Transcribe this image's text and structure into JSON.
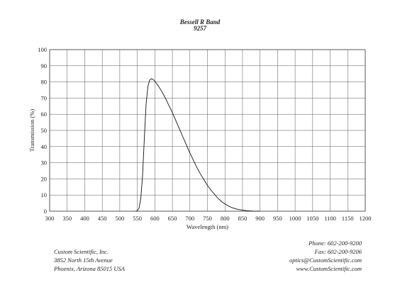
{
  "chart_data": {
    "type": "line",
    "title": "Bessell R Band",
    "subtitle": "9257",
    "xlabel": "Wavelength (nm)",
    "ylabel": "Transmission (%)",
    "xlim": [
      300,
      1200
    ],
    "ylim": [
      0,
      100
    ],
    "xticks": [
      300,
      350,
      400,
      450,
      500,
      550,
      600,
      650,
      700,
      750,
      800,
      850,
      900,
      950,
      1000,
      1050,
      1100,
      1150,
      1200
    ],
    "yticks": [
      0,
      10,
      20,
      30,
      40,
      50,
      60,
      70,
      80,
      90,
      100
    ],
    "grid": true,
    "series": [
      {
        "x": [
          545,
          550,
          555,
          560,
          565,
          570,
          575,
          580,
          585,
          590,
          595,
          600,
          610,
          620,
          630,
          640,
          650,
          660,
          670,
          680,
          690,
          700,
          710,
          720,
          730,
          740,
          750,
          760,
          770,
          780,
          790,
          800,
          810,
          820,
          830,
          840,
          850,
          860,
          870,
          880,
          890,
          900
        ],
        "y": [
          0,
          0.3,
          2,
          8,
          22,
          45,
          66,
          77,
          81,
          82,
          81.5,
          80.5,
          77.5,
          74,
          70,
          65.5,
          61,
          56,
          51,
          46,
          41,
          36,
          31.5,
          27,
          23,
          19.5,
          16,
          13,
          10.5,
          8,
          6,
          4.5,
          3.2,
          2.2,
          1.5,
          1,
          0.7,
          0.4,
          0.2,
          0.1,
          0.05,
          0
        ]
      }
    ]
  },
  "footer": {
    "left": [
      "Custom Scientific, Inc.",
      "3852 North 15th Avenue",
      "Phoenix, Arizona 85015 USA"
    ],
    "right": [
      "Phone:  602-200-9200",
      "Fax:  602-200-9206",
      "optics@CustomScientific.com",
      "www.CustomScientific.com"
    ]
  }
}
